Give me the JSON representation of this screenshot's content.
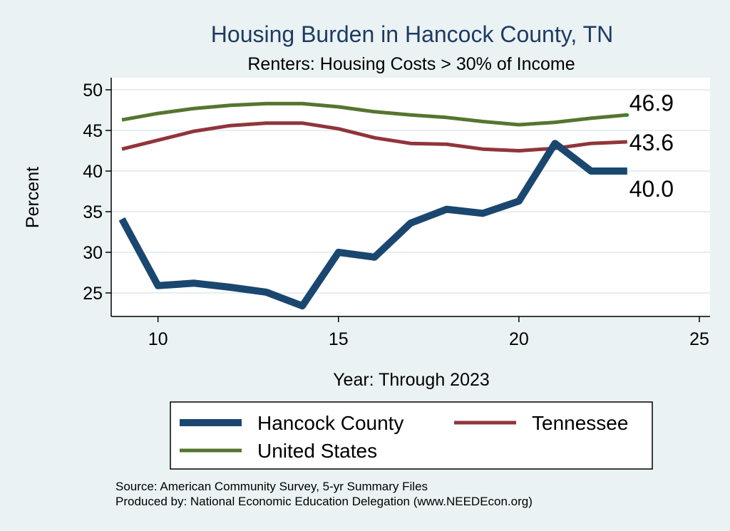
{
  "chart_data": {
    "type": "line",
    "title": "Housing Burden in Hancock County, TN",
    "subtitle": "Renters: Housing Costs > 30% of Income",
    "xlabel": "Year: Through 2023",
    "ylabel": "Percent",
    "xlim": [
      9,
      25
    ],
    "ylim": [
      22,
      51
    ],
    "x_ticks": [
      10,
      15,
      20,
      25
    ],
    "y_ticks": [
      25,
      30,
      35,
      40,
      45,
      50
    ],
    "grid": true,
    "x": [
      9,
      10,
      11,
      12,
      13,
      14,
      15,
      16,
      17,
      18,
      19,
      20,
      21,
      22,
      23
    ],
    "series": [
      {
        "name": "Hancock County",
        "color": "#1a476f",
        "values": [
          34.1,
          25.9,
          26.2,
          25.7,
          25.1,
          23.4,
          30.0,
          29.4,
          33.6,
          35.3,
          34.8,
          36.3,
          43.4,
          40.0,
          40.0
        ],
        "end_label": "40.0"
      },
      {
        "name": "Tennessee",
        "color": "#90353b",
        "values": [
          42.7,
          43.8,
          44.9,
          45.6,
          45.9,
          45.9,
          45.2,
          44.1,
          43.4,
          43.3,
          42.7,
          42.5,
          42.8,
          43.4,
          43.6
        ],
        "end_label": "43.6"
      },
      {
        "name": "United States",
        "color": "#55752f",
        "values": [
          46.3,
          47.1,
          47.7,
          48.1,
          48.3,
          48.3,
          47.9,
          47.3,
          46.9,
          46.6,
          46.1,
          45.7,
          46.0,
          46.5,
          46.9
        ],
        "end_label": "46.9"
      }
    ],
    "legend": {
      "placement": "bottom",
      "entries": [
        "Hancock County",
        "Tennessee",
        "United States"
      ]
    },
    "notes": [
      "Source: American Community Survey, 5-yr Summary Files",
      "Produced by: National Economic Education Delegation (www.NEEDEcon.org)"
    ]
  }
}
